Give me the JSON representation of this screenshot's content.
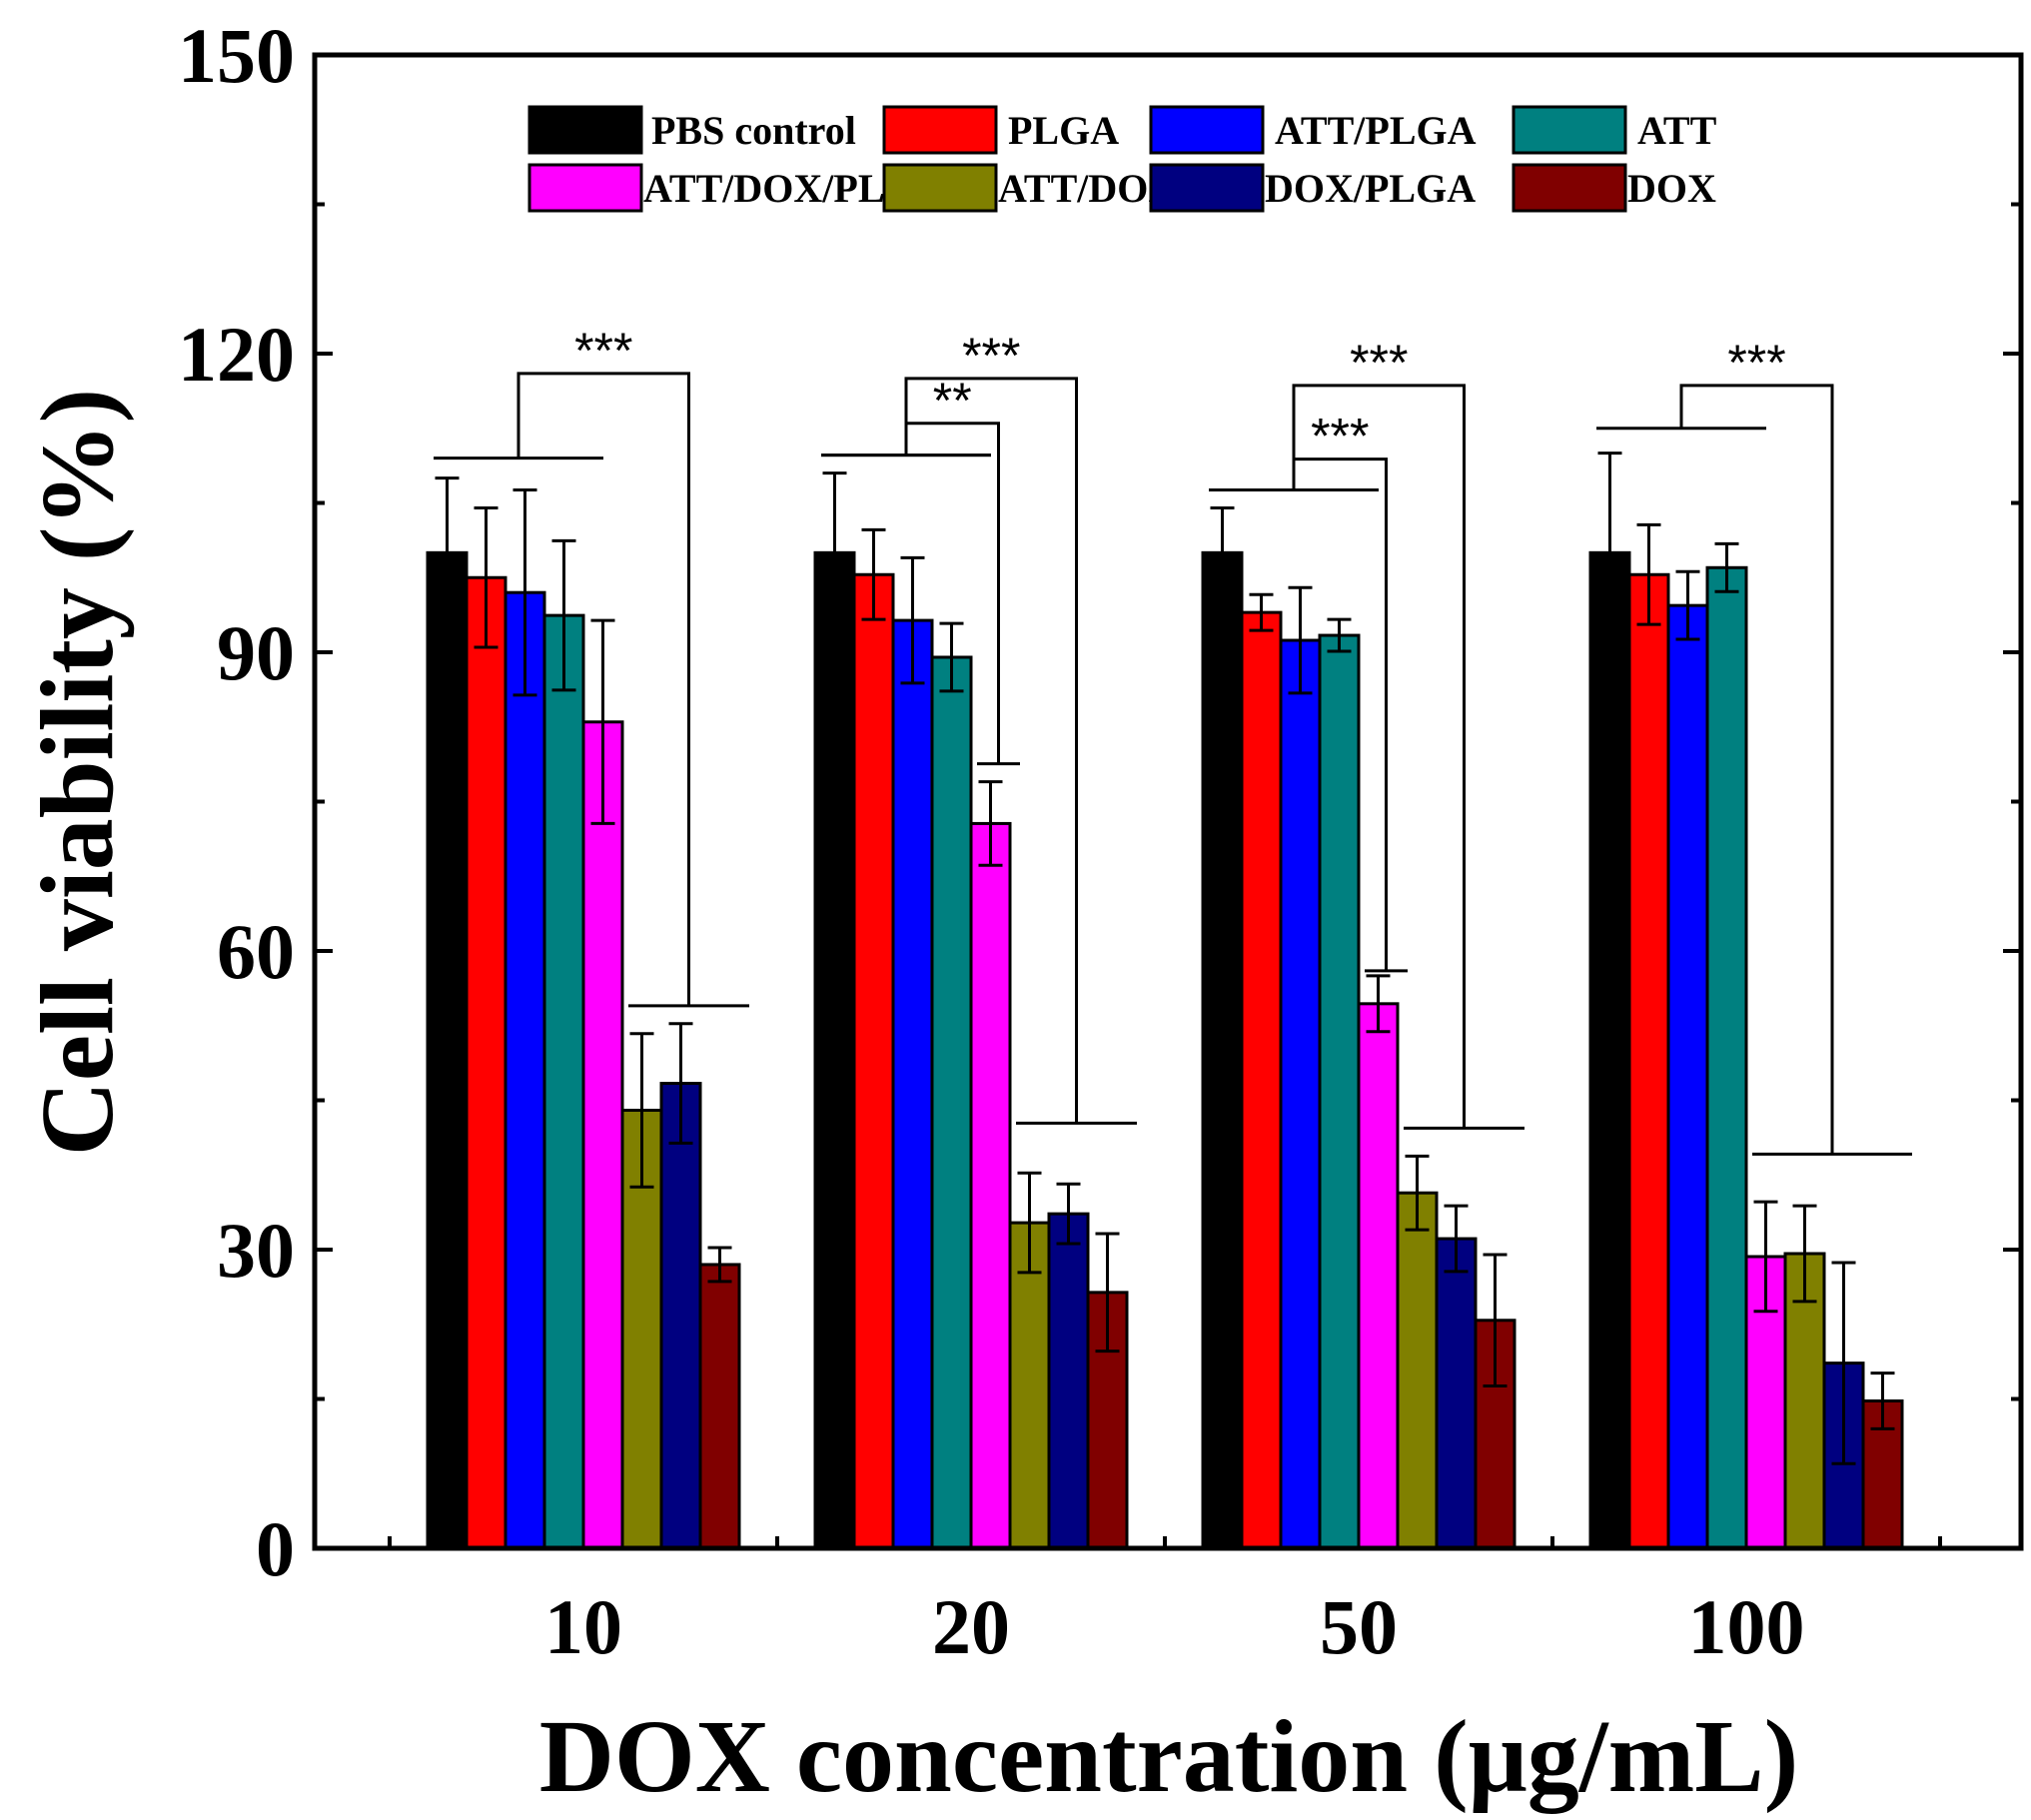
{
  "chart_data": {
    "type": "bar",
    "title": "",
    "xlabel": "DOX concentration (μg/mL)",
    "ylabel": "Cell viability (%)",
    "ylim": [
      0,
      150
    ],
    "yticks": [
      0,
      30,
      60,
      90,
      120,
      150
    ],
    "categories": [
      "10",
      "20",
      "50",
      "100"
    ],
    "legend_position": "top",
    "series": [
      {
        "name": "PBS control",
        "color": "#000000",
        "values": [
          100,
          100,
          100,
          100
        ],
        "errors": [
          7.5,
          8,
          4.5,
          10
        ]
      },
      {
        "name": "PLGA",
        "color": "#ff0000",
        "values": [
          97.5,
          97.8,
          94,
          97.8
        ],
        "errors": [
          7,
          4.5,
          1.8,
          5
        ]
      },
      {
        "name": "ATT/PLGA",
        "color": "#0000ff",
        "values": [
          96,
          93.2,
          91.2,
          94.7
        ],
        "errors": [
          10.3,
          6.3,
          5.3,
          3.4
        ]
      },
      {
        "name": "ATT",
        "color": "#008080",
        "values": [
          93.7,
          89.5,
          91.7,
          98.5
        ],
        "errors": [
          7.5,
          3.4,
          1.6,
          2.4
        ]
      },
      {
        "name": "ATT/DOX/PLGA",
        "color": "#ff00ff",
        "values": [
          83,
          72.8,
          54.7,
          29.3
        ],
        "errors": [
          10.2,
          4.2,
          2.8,
          5.5
        ]
      },
      {
        "name": "ATT/DOX",
        "color": "#808000",
        "values": [
          44,
          32.7,
          35.7,
          29.6
        ],
        "errors": [
          7.7,
          5,
          3.7,
          4.8
        ]
      },
      {
        "name": "DOX/PLGA",
        "color": "#000080",
        "values": [
          46.7,
          33.6,
          31.1,
          18.6
        ],
        "errors": [
          6,
          3,
          3.3,
          10.1
        ]
      },
      {
        "name": "DOX",
        "color": "#800000",
        "values": [
          28.5,
          25.7,
          22.9,
          14.8
        ],
        "errors": [
          1.7,
          5.9,
          6.6,
          2.8
        ]
      }
    ],
    "annotations": [
      {
        "group": "10",
        "text": "***",
        "compare": "PBS control/PLGA/ATT/PLGA/ATT vs ATT/DOX/DOX/PLGA/DOX"
      },
      {
        "group": "20",
        "text": "***",
        "compare": "PBS control/PLGA/ATT/PLGA/ATT vs ATT/DOX/DOX/PLGA/DOX"
      },
      {
        "group": "20",
        "text": "**",
        "compare": "PBS control/PLGA/ATT/PLGA/ATT vs ATT/DOX/PLGA"
      },
      {
        "group": "50",
        "text": "***",
        "compare": "PBS control/PLGA/ATT/PLGA/ATT vs ATT/DOX/DOX/PLGA/DOX"
      },
      {
        "group": "50",
        "text": "***",
        "compare": "PBS control/PLGA/ATT/PLGA/ATT vs ATT/DOX/PLGA"
      },
      {
        "group": "100",
        "text": "***",
        "compare": "PBS control/PLGA/ATT/PLGA/ATT vs ATT/DOX/PLGA/ATT/DOX/DOX/PLGA/DOX"
      }
    ]
  }
}
